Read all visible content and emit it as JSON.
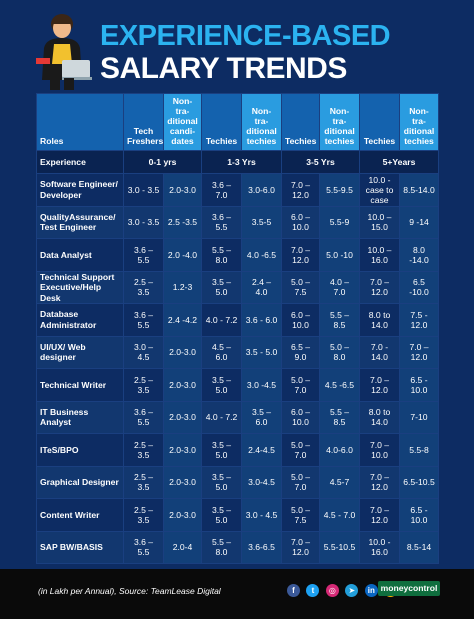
{
  "title": {
    "line1": "EXPERIENCE-BASED",
    "line2": "SALARY TRENDS"
  },
  "columns": {
    "roles": "Roles",
    "tech_freshers": "Tech Freshers",
    "non_trad_candidates": "Non-tra-ditional candi-dates",
    "techies_1": "Techies",
    "non_trad_techies_1": "Non-tra-ditional techies",
    "techies_2": "Techies",
    "non_trad_techies_2": "Non-tra-ditional techies",
    "techies_3": "Techies",
    "non_trad_techies_3": "Non-tra-ditional techies"
  },
  "experience": {
    "label": "Experience",
    "bands": [
      "0-1 yrs",
      "1-3 Yrs",
      "3-5 Yrs",
      "5+Years"
    ]
  },
  "rows": [
    {
      "role": "Software Engineer/ Developer",
      "cells": [
        "3.0 - 3.5",
        "2.0-3.0",
        "3.6 – 7.0",
        "3.0-6.0",
        "7.0 – 12.0",
        "5.5-9.5",
        "10.0 - case to case",
        "8.5-14.0"
      ]
    },
    {
      "role": "QualityAssurance/ Test Engineer",
      "cells": [
        "3.0 - 3.5",
        "2.5 -3.5",
        "3.6 – 5.5",
        "3.5-5",
        "6.0 – 10.0",
        "5.5-9",
        "10.0 – 15.0",
        "9 -14"
      ]
    },
    {
      "role": "Data Analyst",
      "cells": [
        "3.6 – 5.5",
        "2.0 -4.0",
        "5.5 – 8.0",
        "4.0 -6.5",
        "7.0 – 12.0",
        "5.0 -10",
        "10.0 – 16.0",
        "8.0 -14.0"
      ]
    },
    {
      "role": "Technical Support Executive/Help Desk",
      "cells": [
        "2.5 – 3.5",
        "1.2-3",
        "3.5 – 5.0",
        "2.4 – 4.0",
        "5.0 – 7.5",
        "4.0 – 7.0",
        "7.0 – 12.0",
        "6.5 -10.0"
      ]
    },
    {
      "role": "Database Administrator",
      "cells": [
        "3.6 – 5.5",
        "2.4 -4.2",
        "4.0 - 7.2",
        "3.6 - 6.0",
        "6.0 – 10.0",
        "5.5 – 8.5",
        "8.0 to 14.0",
        "7.5 - 12.0"
      ]
    },
    {
      "role": "UI/UX/ Web designer",
      "cells": [
        "3.0 – 4.5",
        "2.0-3.0",
        "4.5 – 6.0",
        "3.5 - 5.0",
        "6.5 – 9.0",
        "5.0 – 8.0",
        "7.0 - 14.0",
        "7.0 – 12.0"
      ]
    },
    {
      "role": "Technical Writer",
      "cells": [
        "2.5 – 3.5",
        "2.0-3.0",
        "3.5 – 5.0",
        "3.0 -4.5",
        "5.0 – 7.0",
        "4.5 -6.5",
        "7.0 – 12.0",
        "6.5 - 10.0"
      ]
    },
    {
      "role": "IT Business Analyst",
      "cells": [
        "3.6 – 5.5",
        "2.0-3.0",
        "4.0 - 7.2",
        "3.5 – 6.0",
        "6.0 – 10.0",
        "5.5 – 8.5",
        "8.0 to 14.0",
        "7-10"
      ]
    },
    {
      "role": "ITeS/BPO",
      "cells": [
        "2.5 – 3.5",
        "2.0-3.0",
        "3.5 – 5.0",
        "2.4-4.5",
        "5.0 – 7.0",
        "4.0-6.0",
        "7.0 – 10.0",
        "5.5-8"
      ]
    },
    {
      "role": "Graphical Designer",
      "cells": [
        "2.5 – 3.5",
        "2.0-3.0",
        "3.5 – 5.0",
        "3.0-4.5",
        "5.0 – 7.0",
        "4.5-7",
        "7.0 – 12.0",
        "6.5-10.5"
      ]
    },
    {
      "role": "Content Writer",
      "cells": [
        "2.5 – 3.5",
        "2.0-3.0",
        "3.5 – 5.0",
        "3.0 - 4.5",
        "5.0 – 7.5",
        "4.5 - 7.0",
        "7.0 – 12.0",
        "6.5 - 10.0"
      ]
    },
    {
      "role": "SAP BW/BASIS",
      "cells": [
        "3.6 – 5.5",
        "2.0-4",
        "5.5 – 8.0",
        "3.6-6.5",
        "7.0 – 12.0",
        "5.5-10.5",
        "10.0 - 16.0",
        "8.5-14"
      ]
    }
  ],
  "footer": {
    "source": "(in Lakh per Annual), Source: TeamLease Digital",
    "social_icons": [
      "facebook-icon",
      "twitter-icon",
      "instagram-icon",
      "telegram-icon",
      "linkedin-icon",
      "koo-icon"
    ],
    "brand": "moneycontrol"
  },
  "colors": {
    "background": "#0d2c63",
    "header_dark": "#1462ae",
    "header_light": "#2a9ce0",
    "title_accent": "#2bb3f0",
    "footer": "#0a0a0a",
    "brand": "#0f6e3e"
  }
}
